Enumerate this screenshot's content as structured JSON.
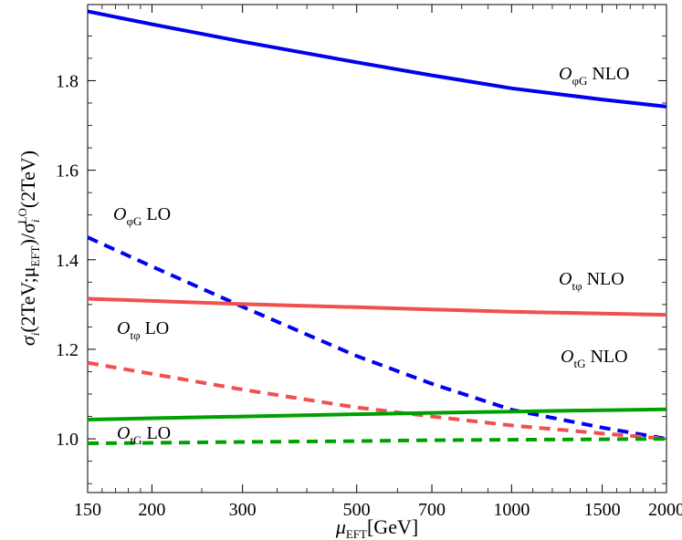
{
  "chart_data": {
    "type": "line",
    "title": "",
    "xlabel": {
      "main": "μ",
      "sub": "EFT",
      "rest": "[GeV]"
    },
    "ylabel": {
      "p1": "σ",
      "p2": "i",
      "p3": "(2TeV;μ",
      "p4": "EFT",
      "p5": ")/σ",
      "p6": "i",
      "p7": "LO",
      "p8": "(2TeV)"
    },
    "x_scale": "log",
    "xlim": [
      150,
      2000
    ],
    "ylim": [
      0.88,
      1.97
    ],
    "x_ticks": [
      150,
      200,
      300,
      500,
      700,
      1000,
      1500,
      2000
    ],
    "x_tick_labels": [
      "150",
      "200",
      "300",
      "500",
      "700",
      "1000",
      "1500",
      "2000"
    ],
    "y_ticks": [
      1.0,
      1.2,
      1.4,
      1.6,
      1.8
    ],
    "y_tick_labels": [
      "1.0",
      "1.2",
      "1.4",
      "1.6",
      "1.8"
    ],
    "x": [
      150,
      200,
      300,
      500,
      700,
      1000,
      1500,
      2000
    ],
    "series": [
      {
        "name": "O_φG NLO",
        "label": {
          "base": "O",
          "sub": "φG",
          "suffix": "NLO"
        },
        "color": "#0000ee",
        "dash": "solid",
        "values": [
          1.955,
          1.926,
          1.887,
          1.841,
          1.812,
          1.783,
          1.758,
          1.742
        ]
      },
      {
        "name": "O_φG LO",
        "label": {
          "base": "O",
          "sub": "φG",
          "suffix": "LO"
        },
        "color": "#0000ee",
        "dash": "dashed",
        "values": [
          1.45,
          1.385,
          1.295,
          1.185,
          1.123,
          1.065,
          1.025,
          1.0
        ]
      },
      {
        "name": "O_tφ NLO",
        "label": {
          "base": "O",
          "sub": "tφ",
          "suffix": "NLO"
        },
        "color": "#f05050",
        "dash": "solid",
        "values": [
          1.313,
          1.308,
          1.301,
          1.294,
          1.289,
          1.284,
          1.28,
          1.277
        ]
      },
      {
        "name": "O_tφ LO",
        "label": {
          "base": "O",
          "sub": "tφ",
          "suffix": "LO"
        },
        "color": "#f05050",
        "dash": "dashed",
        "values": [
          1.17,
          1.145,
          1.11,
          1.07,
          1.05,
          1.03,
          1.012,
          1.0
        ]
      },
      {
        "name": "O_tG NLO",
        "label": {
          "base": "O",
          "sub": "tG",
          "suffix": "NLO"
        },
        "color": "#00a000",
        "dash": "solid",
        "values": [
          1.043,
          1.046,
          1.05,
          1.055,
          1.058,
          1.061,
          1.064,
          1.066
        ]
      },
      {
        "name": "O_tG LO",
        "label": {
          "base": "O",
          "sub": "tG",
          "suffix": "LO"
        },
        "color": "#00a000",
        "dash": "dashed",
        "values": [
          0.99,
          0.991,
          0.993,
          0.995,
          0.997,
          0.998,
          0.999,
          1.0
        ]
      }
    ],
    "grid": false,
    "legend": "inline labels"
  }
}
